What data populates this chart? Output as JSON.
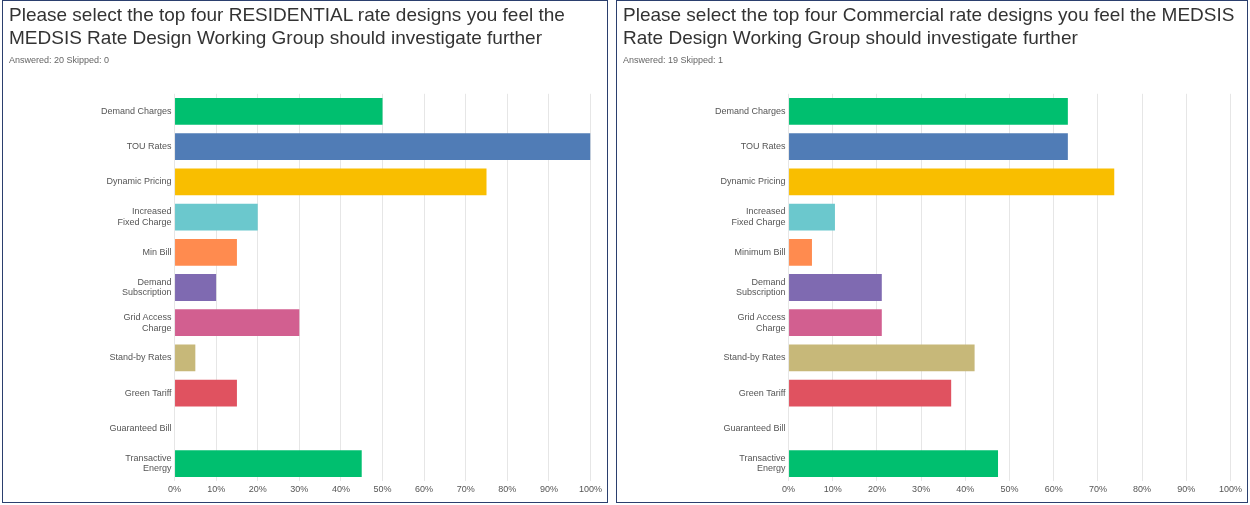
{
  "chart_data": [
    {
      "type": "bar",
      "orientation": "horizontal",
      "title": "Please select the top four RESIDENTIAL rate designs you feel the MEDSIS Rate Design Working Group should investigate further",
      "subtitle": "Answered: 20    Skipped: 0",
      "categories": [
        "Demand Charges",
        "TOU Rates",
        "Dynamic Pricing",
        "Increased Fixed Charge",
        "Min Bill",
        "Demand Subscription",
        "Grid Access Charge",
        "Stand-by Rates",
        "Green Tariff",
        "Guaranteed Bill",
        "Transactive Energy"
      ],
      "values": [
        50,
        100,
        75,
        20,
        15,
        10,
        30,
        5,
        15,
        0,
        45
      ],
      "colors": [
        "#00bf6f",
        "#507cb6",
        "#f9be00",
        "#6bc8cd",
        "#ff8b4f",
        "#7f6ab1",
        "#d25f90",
        "#c7b879",
        "#e05260",
        "#00bf6f",
        "#00bf6f"
      ],
      "xlim": [
        0,
        100
      ],
      "xticks": [
        {
          "value": 0,
          "label": "0%"
        },
        {
          "value": 10,
          "label": "10%"
        },
        {
          "value": 20,
          "label": "20%"
        },
        {
          "value": 30,
          "label": "30%"
        },
        {
          "value": 40,
          "label": "40%"
        },
        {
          "value": 50,
          "label": "50%"
        },
        {
          "value": 60,
          "label": "60%"
        },
        {
          "value": 70,
          "label": "70%"
        },
        {
          "value": 80,
          "label": "80%"
        },
        {
          "value": 90,
          "label": "90%"
        },
        {
          "value": 100,
          "label": "100%"
        }
      ],
      "grid": "x",
      "legend": false
    },
    {
      "type": "bar",
      "orientation": "horizontal",
      "title": "Please select the top four Commercial rate designs you feel the MEDSIS Rate Design Working Group should investigate further",
      "subtitle": "Answered: 19    Skipped: 1",
      "categories": [
        "Demand Charges",
        "TOU Rates",
        "Dynamic Pricing",
        "Increased Fixed Charge",
        "Minimum Bill",
        "Demand Subscription",
        "Grid Access Charge",
        "Stand-by Rates",
        "Green Tariff",
        "Guaranteed Bill",
        "Transactive Energy"
      ],
      "values": [
        63.2,
        63.2,
        73.7,
        10.5,
        5.3,
        21.1,
        21.1,
        42.1,
        36.8,
        0,
        47.4
      ],
      "colors": [
        "#00bf6f",
        "#507cb6",
        "#f9be00",
        "#6bc8cd",
        "#ff8b4f",
        "#7f6ab1",
        "#d25f90",
        "#c7b879",
        "#e05260",
        "#00bf6f",
        "#00bf6f"
      ],
      "xlim": [
        0,
        100
      ],
      "xticks": [
        {
          "value": 0,
          "label": "0%"
        },
        {
          "value": 10,
          "label": "10%"
        },
        {
          "value": 20,
          "label": "20%"
        },
        {
          "value": 30,
          "label": "30%"
        },
        {
          "value": 40,
          "label": "40%"
        },
        {
          "value": 50,
          "label": "50%"
        },
        {
          "value": 60,
          "label": "60%"
        },
        {
          "value": 70,
          "label": "70%"
        },
        {
          "value": 80,
          "label": "80%"
        },
        {
          "value": 90,
          "label": "90%"
        },
        {
          "value": 100,
          "label": "100%"
        }
      ],
      "grid": "x",
      "legend": false
    }
  ]
}
